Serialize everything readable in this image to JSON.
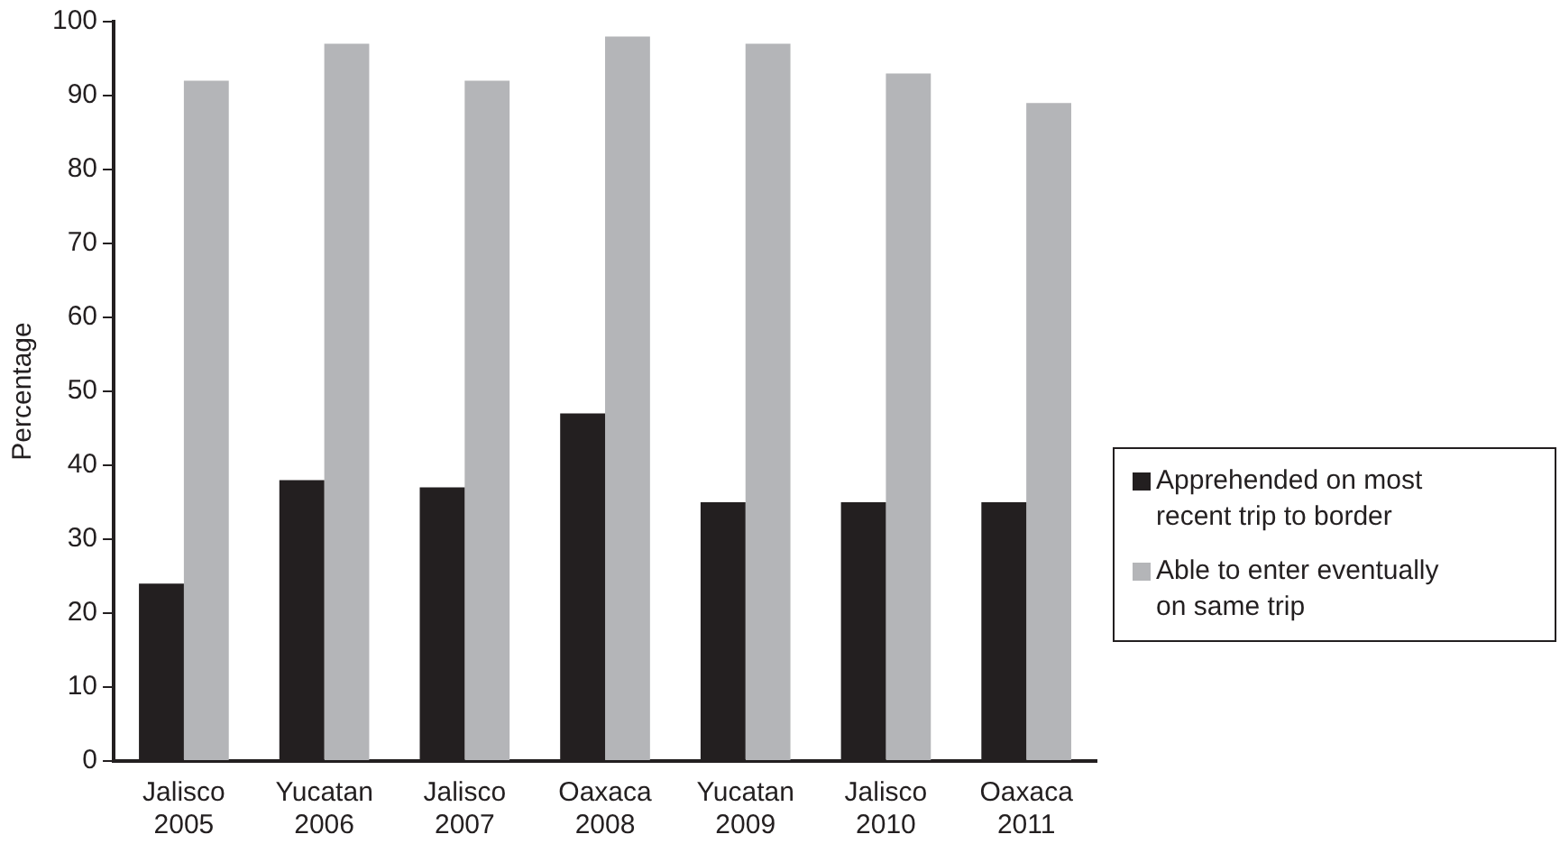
{
  "chart_data": {
    "type": "bar",
    "ylabel": "Percentage",
    "categories": [
      "Jalisco 2005",
      "Yucatan 2006",
      "Jalisco 2007",
      "Oaxaca 2008",
      "Yucatan 2009",
      "Jalisco 2010",
      "Oaxaca 2011"
    ],
    "series": [
      {
        "name": "Apprehended on most recent trip to border",
        "color": "#231f20",
        "values": [
          24,
          38,
          37,
          47,
          35,
          35,
          35
        ]
      },
      {
        "name": "Able to enter eventually on same trip",
        "color": "#b4b5b8",
        "values": [
          92,
          97,
          92,
          98,
          97,
          93,
          89
        ]
      }
    ],
    "ylim": [
      0,
      100
    ],
    "yticks": [
      0,
      10,
      20,
      30,
      40,
      50,
      60,
      70,
      80,
      90,
      100
    ],
    "grid": false,
    "legend": "right"
  }
}
